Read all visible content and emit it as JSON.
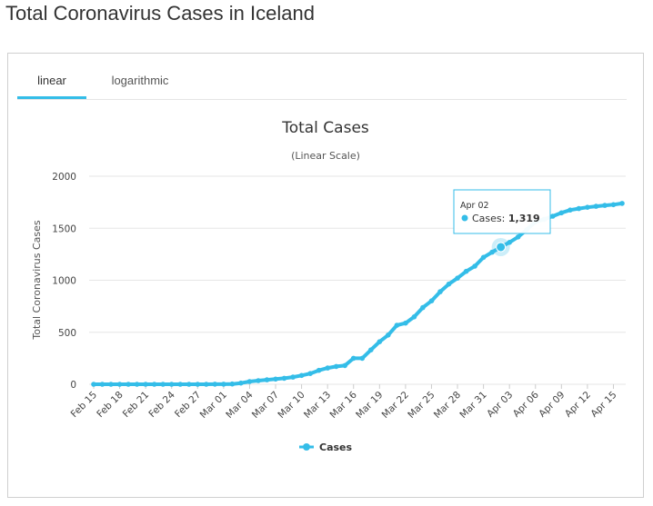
{
  "page": {
    "title": "Total Coronavirus Cases in Iceland"
  },
  "tabs": [
    {
      "label": "linear",
      "active": true
    },
    {
      "label": "logarithmic",
      "active": false
    }
  ],
  "colors": {
    "series": "#34bde8",
    "accent": "#34bde8",
    "grid": "#e6e6e6",
    "text": "#333333"
  },
  "chart_data": {
    "type": "line",
    "title": "Total Cases",
    "subtitle": "(Linear Scale)",
    "ylabel": "Total Coronavirus Cases",
    "xlabel": "",
    "ylim": [
      0,
      2000
    ],
    "yticks": [
      0,
      500,
      1000,
      1500,
      2000
    ],
    "grid": true,
    "legend_position": "bottom-center",
    "categories": [
      "Feb 15",
      "Feb 16",
      "Feb 17",
      "Feb 18",
      "Feb 19",
      "Feb 20",
      "Feb 21",
      "Feb 22",
      "Feb 23",
      "Feb 24",
      "Feb 25",
      "Feb 26",
      "Feb 27",
      "Feb 28",
      "Feb 29",
      "Mar 01",
      "Mar 02",
      "Mar 03",
      "Mar 04",
      "Mar 05",
      "Mar 06",
      "Mar 07",
      "Mar 08",
      "Mar 09",
      "Mar 10",
      "Mar 11",
      "Mar 12",
      "Mar 13",
      "Mar 14",
      "Mar 15",
      "Mar 16",
      "Mar 17",
      "Mar 18",
      "Mar 19",
      "Mar 20",
      "Mar 21",
      "Mar 22",
      "Mar 23",
      "Mar 24",
      "Mar 25",
      "Mar 26",
      "Mar 27",
      "Mar 28",
      "Mar 29",
      "Mar 30",
      "Mar 31",
      "Apr 01",
      "Apr 02",
      "Apr 03",
      "Apr 04",
      "Apr 05",
      "Apr 06",
      "Apr 07",
      "Apr 08",
      "Apr 09",
      "Apr 10",
      "Apr 11",
      "Apr 12",
      "Apr 13",
      "Apr 14",
      "Apr 15",
      "Apr 16"
    ],
    "tick_labels": [
      "Feb 15",
      "Feb 18",
      "Feb 21",
      "Feb 24",
      "Feb 27",
      "Mar 01",
      "Mar 04",
      "Mar 07",
      "Mar 10",
      "Mar 13",
      "Mar 16",
      "Mar 19",
      "Mar 22",
      "Mar 25",
      "Mar 28",
      "Mar 31",
      "Apr 03",
      "Apr 06",
      "Apr 09",
      "Apr 12",
      "Apr 15"
    ],
    "series": [
      {
        "name": "Cases",
        "values": [
          0,
          0,
          0,
          0,
          0,
          0,
          0,
          0,
          0,
          0,
          0,
          0,
          0,
          0,
          1,
          1,
          3,
          11,
          26,
          35,
          43,
          50,
          58,
          69,
          85,
          103,
          134,
          156,
          171,
          180,
          250,
          250,
          330,
          409,
          473,
          568,
          588,
          648,
          737,
          802,
          890,
          963,
          1020,
          1086,
          1135,
          1220,
          1270,
          1319,
          1364,
          1417,
          1486,
          1562,
          1586,
          1616,
          1648,
          1675,
          1689,
          1701,
          1711,
          1720,
          1727,
          1739
        ]
      }
    ],
    "tooltip": {
      "category": "Apr 02",
      "series": "Cases",
      "label": "Cases:",
      "value_text": "1,319"
    },
    "legend": [
      "Cases"
    ]
  }
}
